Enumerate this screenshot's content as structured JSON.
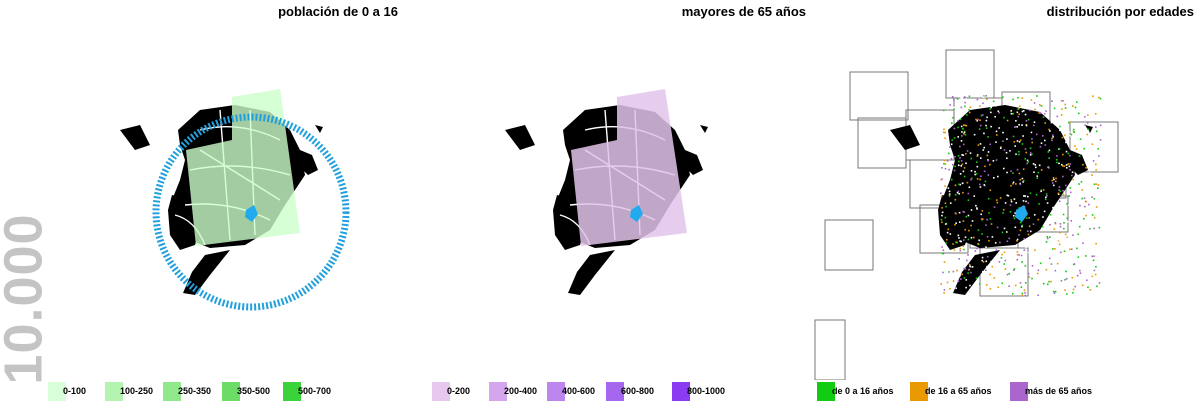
{
  "scale_label": "10.000",
  "panels": [
    {
      "title": "población de 0 a 16",
      "overlay_color": "#ccffcc",
      "legend": [
        {
          "label": "0-100",
          "color": "#d9ffd9"
        },
        {
          "label": "100-250",
          "color": "#b3f5b0"
        },
        {
          "label": "250-350",
          "color": "#8fe88a"
        },
        {
          "label": "350-500",
          "color": "#6ddc66"
        },
        {
          "label": "500-700",
          "color": "#3ad43a"
        }
      ]
    },
    {
      "title": "mayores de 65 años",
      "overlay_color": "#e3c4ea",
      "legend": [
        {
          "label": "0-200",
          "color": "#e6c8ef"
        },
        {
          "label": "200-400",
          "color": "#d3a6ee"
        },
        {
          "label": "400-600",
          "color": "#bd86ef"
        },
        {
          "label": "600-800",
          "color": "#a667ef"
        },
        {
          "label": "800-1000",
          "color": "#8c3cf0"
        }
      ]
    },
    {
      "title": "distribución por edades",
      "legend": [
        {
          "label": "de 0 a 16 años",
          "color": "#11cc11"
        },
        {
          "label": "de 16 a 65 años",
          "color": "#e89a00"
        },
        {
          "label": "más de 65 años",
          "color": "#aa66cc"
        }
      ]
    }
  ],
  "colors": {
    "marker": "#22aaee",
    "circle": "#22a0dd",
    "city": "#000000"
  }
}
